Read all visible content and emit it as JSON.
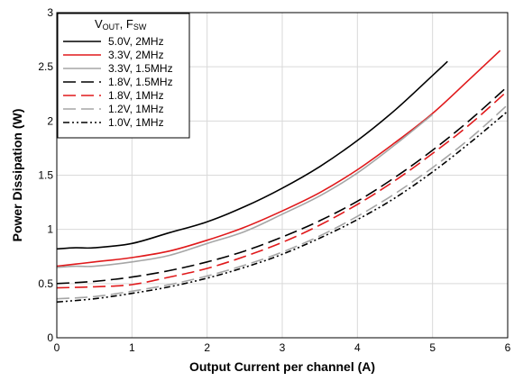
{
  "chart_data": {
    "type": "line",
    "title": "",
    "xlabel": "Output Current per channel (A)",
    "ylabel": "Power Dissipation (W)",
    "xlim": [
      0,
      6
    ],
    "ylim": [
      0,
      3
    ],
    "xticks": [
      "0",
      "1",
      "2",
      "3",
      "4",
      "5",
      "6"
    ],
    "yticks": [
      "0",
      "0.5",
      "1",
      "1.5",
      "2",
      "2.5",
      "3"
    ],
    "grid": true,
    "legend_position": "top-left",
    "legend_title": {
      "v": "V",
      "v_sub": "OUT",
      "sep": ", F",
      "f_sub": "SW"
    },
    "series": [
      {
        "name": "5.0V, 2MHz",
        "color": "#000000",
        "dash": "solid",
        "x": [
          0,
          0.25,
          0.5,
          1,
          1.5,
          2,
          2.5,
          3,
          3.5,
          4,
          4.5,
          5,
          5.2
        ],
        "y": [
          0.82,
          0.83,
          0.83,
          0.87,
          0.97,
          1.07,
          1.21,
          1.38,
          1.58,
          1.82,
          2.1,
          2.42,
          2.55
        ]
      },
      {
        "name": "3.3V, 2MHz",
        "color": "#e0191b",
        "dash": "solid",
        "x": [
          0,
          0.25,
          0.5,
          1,
          1.5,
          2,
          2.5,
          3,
          3.5,
          4,
          4.5,
          5,
          5.5,
          5.9
        ],
        "y": [
          0.66,
          0.68,
          0.7,
          0.74,
          0.8,
          0.9,
          1.02,
          1.17,
          1.34,
          1.55,
          1.8,
          2.07,
          2.39,
          2.65
        ]
      },
      {
        "name": "3.3V, 1.5MHz",
        "color": "#a6a6a6",
        "dash": "solid",
        "x": [
          0,
          0.25,
          0.5,
          1,
          1.5,
          2,
          2.5,
          3,
          3.5,
          4,
          4.5,
          5
        ],
        "y": [
          0.65,
          0.66,
          0.66,
          0.7,
          0.76,
          0.87,
          0.98,
          1.14,
          1.31,
          1.52,
          1.78,
          2.06
        ]
      },
      {
        "name": "1.8V, 1.5MHz",
        "color": "#000000",
        "dash": "longdash",
        "x": [
          0,
          0.5,
          1,
          1.5,
          2,
          2.5,
          3,
          3.5,
          4,
          4.5,
          5,
          5.5,
          6
        ],
        "y": [
          0.5,
          0.52,
          0.56,
          0.62,
          0.7,
          0.8,
          0.93,
          1.08,
          1.26,
          1.48,
          1.73,
          2.01,
          2.32
        ]
      },
      {
        "name": "1.8V, 1MHz",
        "color": "#e0191b",
        "dash": "longdash",
        "x": [
          0,
          0.5,
          1,
          1.5,
          2,
          2.5,
          3,
          3.5,
          4,
          4.5,
          5,
          5.5,
          6
        ],
        "y": [
          0.46,
          0.47,
          0.49,
          0.56,
          0.64,
          0.75,
          0.88,
          1.04,
          1.23,
          1.45,
          1.7,
          1.97,
          2.28
        ]
      },
      {
        "name": "1.2V, 1MHz",
        "color": "#a6a6a6",
        "dash": "longdash",
        "x": [
          0,
          0.5,
          1,
          1.5,
          2,
          2.5,
          3,
          3.5,
          4,
          4.5,
          5,
          5.5,
          6
        ],
        "y": [
          0.36,
          0.38,
          0.43,
          0.49,
          0.57,
          0.67,
          0.79,
          0.94,
          1.12,
          1.33,
          1.57,
          1.84,
          2.15
        ]
      },
      {
        "name": "1.0V, 1MHz",
        "color": "#000000",
        "dash": "dashdotdot",
        "x": [
          0,
          0.5,
          1,
          1.5,
          2,
          2.5,
          3,
          3.5,
          4,
          4.5,
          5,
          5.5,
          6
        ],
        "y": [
          0.33,
          0.36,
          0.41,
          0.47,
          0.55,
          0.65,
          0.77,
          0.92,
          1.09,
          1.29,
          1.53,
          1.8,
          2.09
        ]
      }
    ]
  }
}
